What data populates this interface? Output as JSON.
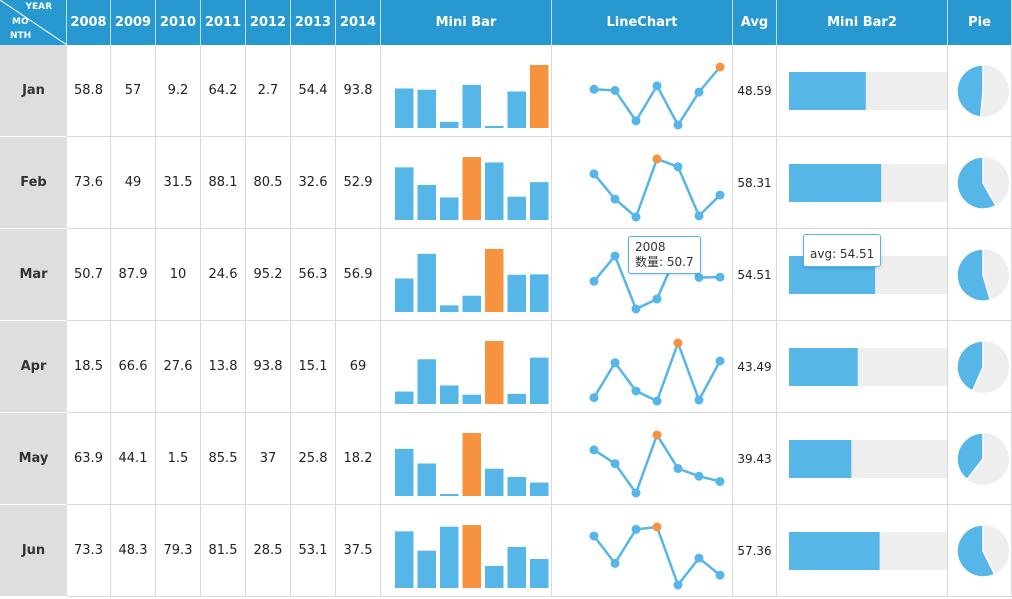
{
  "table": {
    "corner_year": "YEAR",
    "corner_month_1": "MO",
    "corner_month_2": "NTH",
    "years": [
      "2008",
      "2009",
      "2010",
      "2011",
      "2012",
      "2013",
      "2014"
    ],
    "col_minibar": "Mini Bar",
    "col_linechart": "LineChart",
    "col_avg": "Avg",
    "col_minibar2": "Mini Bar2",
    "col_pie": "Pie"
  },
  "colors": {
    "header_bg": "#2799d0",
    "bar": "#56b6e7",
    "highlight": "#f7923f",
    "track": "#eeeeee",
    "month_bg": "#dedede"
  },
  "chart_data": {
    "type": "table",
    "rows": [
      {
        "month": "Jan",
        "values": [
          "58.8",
          "57",
          "9.2",
          "64.2",
          "2.7",
          "54.4",
          "93.8"
        ],
        "avg": "48.59"
      },
      {
        "month": "Feb",
        "values": [
          "73.6",
          "49",
          "31.5",
          "88.1",
          "80.5",
          "32.6",
          "52.9"
        ],
        "avg": "58.31"
      },
      {
        "month": "Mar",
        "values": [
          "50.7",
          "87.9",
          "10",
          "24.6",
          "95.2",
          "56.3",
          "56.9"
        ],
        "avg": "54.51"
      },
      {
        "month": "Apr",
        "values": [
          "18.5",
          "66.6",
          "27.6",
          "13.8",
          "93.8",
          "15.1",
          "69"
        ],
        "avg": "43.49"
      },
      {
        "month": "May",
        "values": [
          "63.9",
          "44.1",
          "1.5",
          "85.5",
          "37",
          "25.8",
          "18.2"
        ],
        "avg": "39.43"
      },
      {
        "month": "Jun",
        "values": [
          "73.3",
          "48.3",
          "79.3",
          "81.5",
          "28.5",
          "53.1",
          "37.5"
        ],
        "avg": "57.36"
      }
    ],
    "minibar2_max": 100
  },
  "tooltips": {
    "line_year": "2008",
    "line_value": "数量: 50.7",
    "avg_text": "avg: 54.51"
  }
}
